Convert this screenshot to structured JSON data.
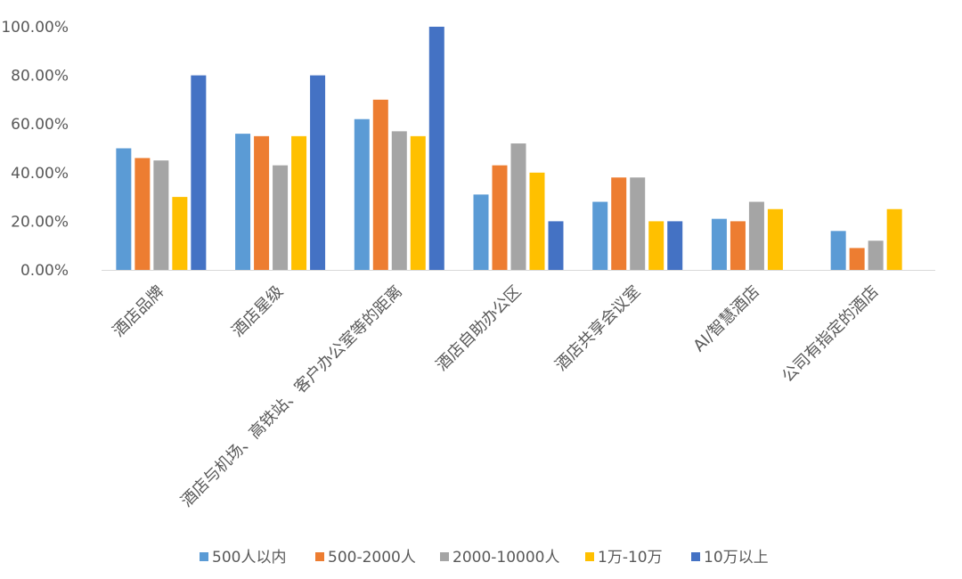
{
  "chart_data": {
    "type": "bar",
    "categories": [
      "酒店品牌",
      "酒店星级",
      "酒店与机场、高铁站、客户办公室等的距离",
      "酒店自助办公区",
      "酒店共享会议室",
      "AI/智慧酒店",
      "公司有指定的酒店"
    ],
    "series": [
      {
        "name": "500人以内",
        "color": "#5B9BD5",
        "values": [
          50,
          56,
          62,
          31,
          28,
          21,
          16
        ]
      },
      {
        "name": "500-2000人",
        "color": "#ED7D31",
        "values": [
          46,
          55,
          70,
          43,
          38,
          20,
          9
        ]
      },
      {
        "name": "2000-10000人",
        "color": "#A5A5A5",
        "values": [
          45,
          43,
          57,
          52,
          38,
          28,
          12
        ]
      },
      {
        "name": "1万-10万",
        "color": "#FFC000",
        "values": [
          30,
          55,
          55,
          40,
          20,
          25,
          25
        ]
      },
      {
        "name": "10万以上",
        "color": "#4472C4",
        "values": [
          80,
          80,
          100,
          20,
          20,
          0,
          0
        ]
      }
    ],
    "y_ticks": [
      "0.00%",
      "20.00%",
      "40.00%",
      "60.00%",
      "80.00%",
      "100.00%"
    ],
    "ylim": [
      0,
      100
    ],
    "title": "",
    "xlabel": "",
    "ylabel": "",
    "grid": false,
    "legend_position": "bottom"
  }
}
